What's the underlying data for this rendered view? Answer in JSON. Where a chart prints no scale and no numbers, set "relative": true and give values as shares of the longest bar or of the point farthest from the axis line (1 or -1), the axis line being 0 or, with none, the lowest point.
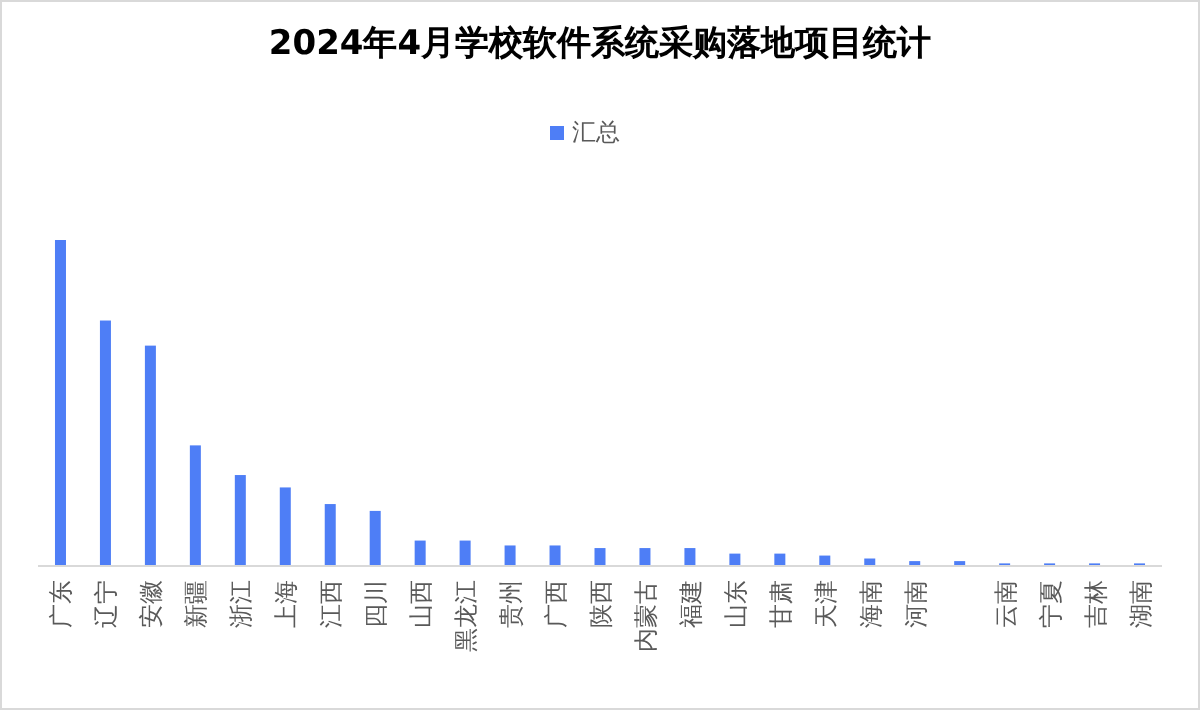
{
  "chart_data": {
    "type": "bar",
    "title": "2024年4月学校软件系统采购落地项目统计",
    "relative": true,
    "legend": "top",
    "categories": [
      "广东",
      "辽宁",
      "安徽",
      "新疆",
      "浙江",
      "上海",
      "江西",
      "四川",
      "山西",
      "黑龙江",
      "贵州",
      "广西",
      "陕西",
      "内蒙古",
      "福建",
      "山东",
      "甘肃",
      "天津",
      "海南",
      "河南",
      null,
      "云南",
      "宁夏",
      "吉林",
      "湖南"
    ],
    "series": [
      {
        "name": "汇总",
        "color": "#4e7ef6",
        "values": [
          1,
          0.753,
          0.676,
          0.37,
          0.279,
          0.241,
          0.19,
          0.169,
          0.078,
          0.078,
          0.063,
          0.063,
          0.055,
          0.055,
          0.055,
          0.038,
          0.038,
          0.032,
          0.023,
          0.015,
          0.015,
          0.008,
          0.008,
          0.008,
          0.008
        ]
      }
    ]
  }
}
